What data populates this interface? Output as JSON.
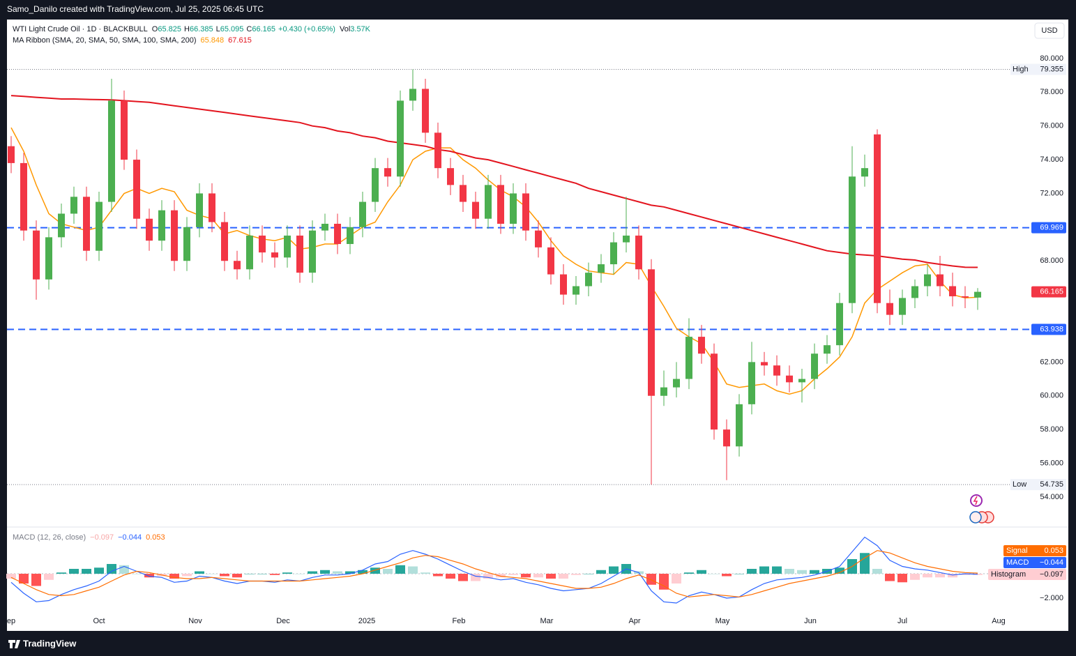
{
  "header": {
    "credit": "Samo_Danilo created with TradingView.com, Jul 25, 2025 06:45 UTC",
    "currency": "USD"
  },
  "footer": {
    "brand": "TradingView"
  },
  "chart_data": [
    {
      "type": "candlestick",
      "title": "WTI Light Crude Oil · 1D · BLACKBULL",
      "ohlc_labels": [
        "O",
        "H",
        "L",
        "C"
      ],
      "change": "+0.430 (+0.65%)",
      "volume": {
        "label": "Vol",
        "value": "3.57K"
      },
      "ma_legend": "MA Ribbon (SMA, 20, SMA, 50, SMA, 100, SMA, 200)",
      "up_color": "#4caf50",
      "down_color": "#f23645",
      "legend_color": "#089981",
      "x": [
        0,
        3,
        6,
        9,
        12,
        15,
        18,
        21,
        24,
        27,
        30,
        33,
        36,
        39,
        42,
        45,
        48,
        51,
        54,
        57,
        60,
        63,
        66,
        69,
        72,
        75,
        78,
        81,
        84,
        87,
        90,
        93,
        96,
        99,
        102,
        105,
        108,
        111,
        114,
        117,
        120,
        123,
        126,
        129,
        132,
        135,
        138,
        141,
        144,
        147,
        150,
        153,
        156,
        159,
        162,
        165,
        168,
        171,
        174,
        177,
        180,
        183,
        186,
        189,
        192,
        195,
        198,
        201,
        204,
        207,
        210,
        213,
        216,
        219,
        222,
        225,
        228,
        231
      ],
      "open": [
        74.8,
        73.8,
        69.8,
        66.9,
        69.4,
        70.8,
        71.8,
        68.6,
        71.5,
        77.5,
        74,
        70.5,
        69.2,
        71,
        68,
        70,
        72,
        70.3,
        68,
        67.5,
        69.5,
        68.5,
        68.2,
        69.5,
        67.3,
        69.8,
        70.2,
        69,
        70,
        71.5,
        73.5,
        73,
        77.5,
        78.2,
        75.6,
        73.5,
        72.5,
        71.5,
        70.5,
        72.5,
        70.2,
        72,
        69.8,
        68.8,
        67.2,
        66,
        66.5,
        67.3,
        67.8,
        69.1,
        69.5,
        67.5,
        60,
        60.5,
        61,
        63.5,
        62.5,
        58,
        57,
        59.5,
        62,
        61.8,
        61.2,
        60.8,
        61,
        62.5,
        63,
        65.5,
        73,
        75.5,
        65.5,
        64.8,
        65.8,
        66.5,
        67.2,
        66.5,
        65.9,
        65.825
      ],
      "high": [
        75.4,
        74.4,
        70.4,
        70,
        71.4,
        72.4,
        72.4,
        72.1,
        78.8,
        78.1,
        74.6,
        71.1,
        71.6,
        71.6,
        70.6,
        72.6,
        72.6,
        70.9,
        68.6,
        70.1,
        70.1,
        69.1,
        70.1,
        70.1,
        70.4,
        70.8,
        70.8,
        70.6,
        72.1,
        74.1,
        74.1,
        78.1,
        79.355,
        78.8,
        76.2,
        74.1,
        73.1,
        72.1,
        73.1,
        73.1,
        72.6,
        72.6,
        70.4,
        69.4,
        67.8,
        67.1,
        67.9,
        68.4,
        69.7,
        71.8,
        70.1,
        68.1,
        61.5,
        62,
        64.6,
        64.2,
        63.1,
        58.6,
        60.1,
        63.2,
        62.6,
        62.4,
        61.8,
        61.6,
        63.1,
        63.6,
        66.1,
        74.8,
        74.3,
        75.8,
        66.3,
        66.3,
        66.9,
        67.8,
        68.3,
        67.3,
        66.5,
        66.385
      ],
      "low": [
        73.2,
        69.2,
        65.7,
        66.3,
        68.8,
        70.2,
        68,
        68,
        70.9,
        73.4,
        69.9,
        68.6,
        68.6,
        67.4,
        67.4,
        69.4,
        69.7,
        67.4,
        66.9,
        66.9,
        67.9,
        67.6,
        67.6,
        66.7,
        66.7,
        69.2,
        68.4,
        68.4,
        69.4,
        70.9,
        72.4,
        72.4,
        76.9,
        75,
        72.9,
        71.9,
        70.9,
        69.9,
        69.9,
        69.6,
        69.6,
        69.2,
        68.2,
        66.6,
        65.4,
        65.4,
        65.9,
        66.7,
        67.2,
        68.5,
        66.9,
        54.735,
        59.4,
        59.9,
        60.4,
        61.9,
        57.4,
        55,
        56.4,
        58.9,
        61.2,
        60.6,
        60.2,
        59.6,
        60.4,
        61.9,
        62.4,
        64.9,
        72.4,
        64.9,
        64.2,
        64.2,
        65.2,
        65.9,
        65.9,
        65.3,
        65.2,
        65.095
      ],
      "close": [
        73.8,
        69.8,
        66.9,
        69.4,
        70.8,
        71.8,
        68.6,
        71.5,
        77.5,
        74,
        70.5,
        69.2,
        71,
        68,
        70,
        72,
        70.3,
        68,
        67.5,
        69.5,
        68.5,
        68.2,
        69.5,
        67.3,
        69.8,
        70.2,
        69,
        70,
        71.5,
        73.5,
        73,
        77.5,
        78.2,
        75.6,
        73.5,
        72.5,
        71.5,
        70.5,
        72.5,
        70.2,
        72,
        69.8,
        68.8,
        67.2,
        66,
        66.5,
        67.3,
        67.8,
        69.1,
        69.5,
        67.5,
        60,
        60.5,
        61,
        63.5,
        62.5,
        58,
        57,
        59.5,
        62,
        61.8,
        61.2,
        60.8,
        61,
        62.5,
        63,
        65.5,
        73,
        73.5,
        65.5,
        64.8,
        65.8,
        66.5,
        67.2,
        66.5,
        65.9,
        65.825,
        66.165
      ],
      "overlays": [
        {
          "color": "#ff9800",
          "values": [
            75.9,
            74.5,
            72.5,
            70.8,
            70.2,
            70,
            69.8,
            70,
            71,
            72,
            72.3,
            72,
            72.3,
            72.1,
            71,
            70.7,
            70.5,
            69.6,
            69.8,
            69.5,
            69.3,
            69.2,
            69.4,
            68.7,
            68.8,
            69,
            69,
            69.5,
            70,
            70.3,
            71.5,
            72.5,
            74,
            74.5,
            74.7,
            74.7,
            74,
            73.5,
            72.8,
            72.2,
            71.8,
            71.2,
            70.3,
            69.2,
            68.3,
            67.8,
            67.4,
            67.3,
            67.2,
            67.9,
            67.8,
            66.5,
            65.3,
            64,
            63.5,
            63.1,
            62,
            60.7,
            60.5,
            60.6,
            60.7,
            60.3,
            60.1,
            60.3,
            61,
            61.6,
            62.3,
            63.5,
            65.5,
            66.3,
            66.8,
            67.3,
            67.7,
            67.8,
            66.8,
            66,
            65.8,
            65.848
          ]
        },
        {
          "color": "#e3141e",
          "values": [
            77.8,
            77.75,
            77.7,
            77.65,
            77.6,
            77.6,
            77.58,
            77.56,
            77.55,
            77.5,
            77.45,
            77.4,
            77.3,
            77.2,
            77.1,
            77.0,
            76.9,
            76.8,
            76.7,
            76.6,
            76.5,
            76.4,
            76.3,
            76.2,
            76.0,
            75.9,
            75.7,
            75.6,
            75.4,
            75.3,
            75.1,
            75.0,
            74.9,
            74.8,
            74.6,
            74.5,
            74.3,
            74.1,
            74.0,
            73.8,
            73.6,
            73.4,
            73.2,
            73.0,
            72.8,
            72.6,
            72.3,
            72.1,
            71.9,
            71.7,
            71.5,
            71.3,
            71.2,
            71.0,
            70.8,
            70.6,
            70.4,
            70.2,
            70.0,
            69.8,
            69.6,
            69.4,
            69.2,
            69.0,
            68.8,
            68.6,
            68.5,
            68.4,
            68.35,
            68.3,
            68.2,
            68.1,
            68.05,
            67.9,
            67.8,
            67.7,
            67.62,
            67.615
          ]
        }
      ],
      "levels": [
        {
          "value": 69.969,
          "color": "#2962ff"
        },
        {
          "value": 63.938,
          "color": "#2962ff"
        }
      ],
      "extremes": {
        "high_label": "High",
        "low_label": "Low"
      },
      "last_price_color": "#f23645",
      "xlim": [
        -1,
        244
      ],
      "ylim": [
        52.26,
        82.27
      ],
      "grid": false,
      "yticks": [
        {
          "value": 54,
          "label": "54.000"
        },
        {
          "value": 56,
          "label": "56.000"
        },
        {
          "value": 58,
          "label": "58.000"
        },
        {
          "value": 60,
          "label": "60.000"
        },
        {
          "value": 62,
          "label": "62.000"
        },
        {
          "value": 64,
          "label": "64.000"
        },
        {
          "value": 66,
          "label": "66.000"
        },
        {
          "value": 68,
          "label": "68.000"
        },
        {
          "value": 70,
          "label": "70.000"
        },
        {
          "value": 72,
          "label": "72.000"
        },
        {
          "value": 74,
          "label": "74.000"
        },
        {
          "value": 76,
          "label": "76.000"
        },
        {
          "value": 78,
          "label": "78.000"
        },
        {
          "value": 80,
          "label": "80.000"
        }
      ]
    },
    {
      "type": "macd",
      "title": "MACD (12, 26, close)",
      "x": [
        0,
        3,
        6,
        9,
        12,
        15,
        18,
        21,
        24,
        27,
        30,
        33,
        36,
        39,
        42,
        45,
        48,
        51,
        54,
        57,
        60,
        63,
        66,
        69,
        72,
        75,
        78,
        81,
        84,
        87,
        90,
        93,
        96,
        99,
        102,
        105,
        108,
        111,
        114,
        117,
        120,
        123,
        126,
        129,
        132,
        135,
        138,
        141,
        144,
        147,
        150,
        153,
        156,
        159,
        162,
        165,
        168,
        171,
        174,
        177,
        180,
        183,
        186,
        189,
        192,
        195,
        198,
        201,
        204,
        207,
        210,
        213,
        216,
        219,
        222,
        225,
        228,
        231
      ],
      "series": [
        {
          "name": "MACD",
          "color": "#2962ff",
          "values": [
            -0.7,
            -1.6,
            -2.3,
            -2.2,
            -1.7,
            -1.3,
            -1.0,
            -0.6,
            0.2,
            0.6,
            0.2,
            -0.2,
            -0.3,
            -0.7,
            -0.6,
            -0.2,
            -0.3,
            -0.6,
            -0.8,
            -0.6,
            -0.6,
            -0.7,
            -0.5,
            -0.6,
            -0.3,
            -0.1,
            -0.1,
            0.0,
            0.3,
            0.8,
            1.0,
            1.6,
            1.9,
            1.6,
            1.2,
            0.7,
            0.2,
            -0.2,
            -0.3,
            -0.5,
            -0.4,
            -0.7,
            -0.9,
            -1.2,
            -1.4,
            -1.3,
            -1.2,
            -0.8,
            -0.2,
            0.4,
            0.1,
            -1.4,
            -2.3,
            -2.4,
            -1.8,
            -1.5,
            -1.7,
            -2.0,
            -1.9,
            -1.3,
            -0.8,
            -0.5,
            -0.4,
            -0.3,
            -0.1,
            0.2,
            0.6,
            1.8,
            3.0,
            2.3,
            1.1,
            0.6,
            0.4,
            0.3,
            0.1,
            -0.1,
            0.0,
            -0.044
          ],
          "last_label": "−0.044"
        },
        {
          "name": "Signal",
          "color": "#ff6d00",
          "values": [
            -0.3,
            -0.8,
            -1.3,
            -1.7,
            -1.8,
            -1.7,
            -1.4,
            -1.1,
            -0.6,
            -0.1,
            0.2,
            0.1,
            -0.1,
            -0.3,
            -0.4,
            -0.4,
            -0.3,
            -0.4,
            -0.5,
            -0.6,
            -0.6,
            -0.6,
            -0.6,
            -0.6,
            -0.5,
            -0.4,
            -0.3,
            -0.2,
            0.0,
            0.3,
            0.6,
            0.9,
            1.3,
            1.5,
            1.4,
            1.1,
            0.8,
            0.4,
            0.1,
            -0.2,
            -0.3,
            -0.4,
            -0.6,
            -0.8,
            -1.0,
            -1.2,
            -1.2,
            -1.1,
            -0.8,
            -0.4,
            -0.1,
            -0.5,
            -1.0,
            -1.6,
            -1.9,
            -1.8,
            -1.7,
            -1.8,
            -1.9,
            -1.7,
            -1.4,
            -1.1,
            -0.8,
            -0.6,
            -0.4,
            -0.2,
            0.1,
            0.6,
            1.3,
            1.9,
            1.7,
            1.3,
            0.9,
            0.6,
            0.4,
            0.2,
            0.1,
            0.053
          ],
          "last_label": "0.053"
        }
      ],
      "histogram": {
        "name": "Histogram",
        "last_label": "−0.097",
        "colors": [
          "#26a69a",
          "#b2dfdb",
          "#ff5252",
          "#ffcdd2"
        ],
        "values": [
          -0.4,
          -0.8,
          -1.0,
          -0.5,
          0.1,
          0.4,
          0.4,
          0.5,
          0.8,
          0.7,
          0.0,
          -0.3,
          -0.2,
          -0.4,
          -0.2,
          0.2,
          0.0,
          -0.2,
          -0.3,
          0.0,
          0.0,
          -0.1,
          0.1,
          0.0,
          0.2,
          0.3,
          0.2,
          0.2,
          0.3,
          0.5,
          0.4,
          0.7,
          0.6,
          0.1,
          -0.2,
          -0.4,
          -0.6,
          -0.6,
          -0.4,
          -0.3,
          -0.1,
          -0.3,
          -0.3,
          -0.4,
          -0.4,
          -0.1,
          0.0,
          0.3,
          0.6,
          0.8,
          0.2,
          -0.9,
          -1.3,
          -0.8,
          0.1,
          0.3,
          0.0,
          -0.2,
          0.0,
          0.4,
          0.6,
          0.6,
          0.4,
          0.3,
          0.3,
          0.4,
          0.5,
          1.2,
          1.7,
          0.4,
          -0.6,
          -0.7,
          -0.5,
          -0.3,
          -0.3,
          -0.3,
          -0.1,
          -0.097
        ]
      },
      "xlim": [
        -1,
        244
      ],
      "ylim": [
        -3.14,
        3.77
      ],
      "yticks": [
        {
          "value": -2,
          "label": "−2.000"
        }
      ],
      "xticks": [
        {
          "value": 0,
          "label": "ep"
        },
        {
          "value": 21,
          "label": "Oct"
        },
        {
          "value": 44,
          "label": "Nov"
        },
        {
          "value": 65,
          "label": "Dec"
        },
        {
          "value": 85,
          "label": "2025"
        },
        {
          "value": 107,
          "label": "Feb"
        },
        {
          "value": 128,
          "label": "Mar"
        },
        {
          "value": 149,
          "label": "Apr"
        },
        {
          "value": 170,
          "label": "May"
        },
        {
          "value": 191,
          "label": "Jun"
        },
        {
          "value": 213,
          "label": "Jul"
        },
        {
          "value": 236,
          "label": "Aug"
        }
      ]
    }
  ]
}
